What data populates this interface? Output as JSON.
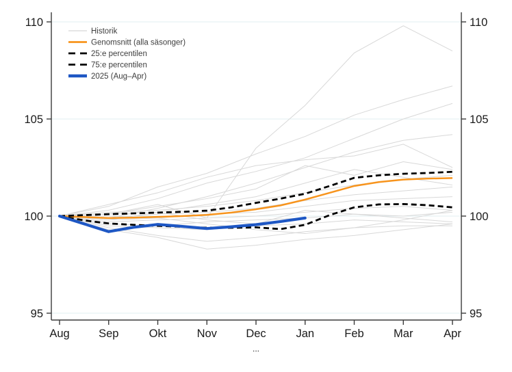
{
  "chart_data": {
    "type": "line",
    "title": "",
    "xlabel_note": "...",
    "x_categories": [
      "Aug",
      "Sep",
      "Okt",
      "Nov",
      "Dec",
      "Jan",
      "Feb",
      "Mar",
      "Apr"
    ],
    "y_ticks": [
      95,
      100,
      105,
      110
    ],
    "ylim": [
      94.6,
      110.6
    ],
    "y_axis_sides": "both",
    "grid": "horizontal-only",
    "legend_position": "top-left-inside",
    "colors": {
      "historik": "#d8d8d8",
      "genomsnitt": "#f7941d",
      "percentil": "#000000",
      "y2025": "#1e57c4",
      "gridline": "#e2eff2",
      "axis": "#3a3a3a"
    },
    "series": [
      {
        "key": "historik",
        "name": "Historik",
        "color": "#d8d8d8",
        "width": 1,
        "style": "solid",
        "x_step": 1,
        "lines": [
          [
            100,
            100.1,
            100.6,
            99.9,
            103.5,
            105.7,
            108.4,
            109.8,
            108.5
          ],
          [
            100,
            100.5,
            101.5,
            102.2,
            103.2,
            104.1,
            105.2,
            106.0,
            106.7
          ],
          [
            100,
            100.3,
            100.9,
            101.7,
            102.3,
            103.0,
            104.0,
            105.0,
            105.8
          ],
          [
            100,
            99.9,
            100.4,
            101.0,
            101.7,
            102.5,
            103.3,
            103.9,
            104.2
          ],
          [
            100,
            100.6,
            101.2,
            102.0,
            102.6,
            102.9,
            103.1,
            103.7,
            102.5
          ],
          [
            100,
            100.1,
            100.5,
            100.9,
            101.4,
            102.6,
            102.1,
            102.8,
            102.4
          ],
          [
            100,
            99.8,
            100.2,
            100.6,
            101.0,
            101.7,
            102.4,
            102.0,
            101.6
          ],
          [
            100,
            100.2,
            100.3,
            100.5,
            100.8,
            101.2,
            101.6,
            101.9,
            102.1
          ],
          [
            100,
            99.9,
            100.1,
            100.2,
            100.4,
            100.8,
            101.1,
            101.3,
            101.5
          ],
          [
            100,
            100.0,
            99.9,
            100.1,
            100.2,
            100.5,
            100.8,
            100.9,
            101.0
          ],
          [
            100,
            99.7,
            99.8,
            99.9,
            100.0,
            100.2,
            100.4,
            100.5,
            100.3
          ],
          [
            100,
            99.6,
            99.5,
            99.7,
            99.8,
            99.9,
            100.1,
            100.0,
            100.2
          ],
          [
            100,
            99.5,
            99.4,
            99.3,
            99.5,
            99.6,
            99.8,
            99.7,
            99.6
          ],
          [
            100,
            99.4,
            99.0,
            98.7,
            98.9,
            99.2,
            99.4,
            99.5,
            99.5
          ],
          [
            100,
            99.3,
            98.9,
            98.3,
            98.5,
            98.8,
            99.0,
            99.3,
            99.6
          ],
          [
            100,
            99.8,
            99.9,
            99.6,
            99.3,
            99.1,
            99.4,
            99.8,
            100.3
          ],
          [
            100,
            100.1,
            100.2,
            99.8,
            99.6,
            100.3,
            100.1,
            99.9,
            99.7
          ]
        ]
      },
      {
        "key": "genomsnitt",
        "name": "Genomsnitt (alla säsonger)",
        "color": "#f7941d",
        "width": 2.5,
        "style": "solid",
        "x_step": 0.5,
        "values": [
          100,
          99.95,
          99.9,
          99.92,
          99.96,
          100.0,
          100.06,
          100.18,
          100.35,
          100.55,
          100.85,
          101.2,
          101.55,
          101.75,
          101.88,
          101.93,
          101.96
        ]
      },
      {
        "key": "p25",
        "name": "25:e percentilen",
        "color": "#000000",
        "width": 2.8,
        "style": "dashed",
        "x_step": 0.5,
        "values": [
          100,
          99.78,
          99.62,
          99.55,
          99.5,
          99.45,
          99.4,
          99.4,
          99.42,
          99.33,
          99.55,
          100.05,
          100.45,
          100.6,
          100.62,
          100.56,
          100.45
        ]
      },
      {
        "key": "p75",
        "name": "75:e percentilen",
        "color": "#000000",
        "width": 2.8,
        "style": "dashed",
        "x_step": 0.5,
        "values": [
          100,
          100.05,
          100.1,
          100.14,
          100.18,
          100.22,
          100.28,
          100.45,
          100.68,
          100.9,
          101.15,
          101.55,
          101.97,
          102.1,
          102.18,
          102.22,
          102.28
        ]
      },
      {
        "key": "y2025",
        "name": "2025 (Aug–Apr)",
        "color": "#1e57c4",
        "width": 4.2,
        "style": "solid",
        "x_step": 0.5,
        "values": [
          100,
          99.6,
          99.2,
          99.42,
          99.57,
          99.47,
          99.36,
          99.45,
          99.56,
          99.72,
          99.9
        ]
      }
    ]
  }
}
